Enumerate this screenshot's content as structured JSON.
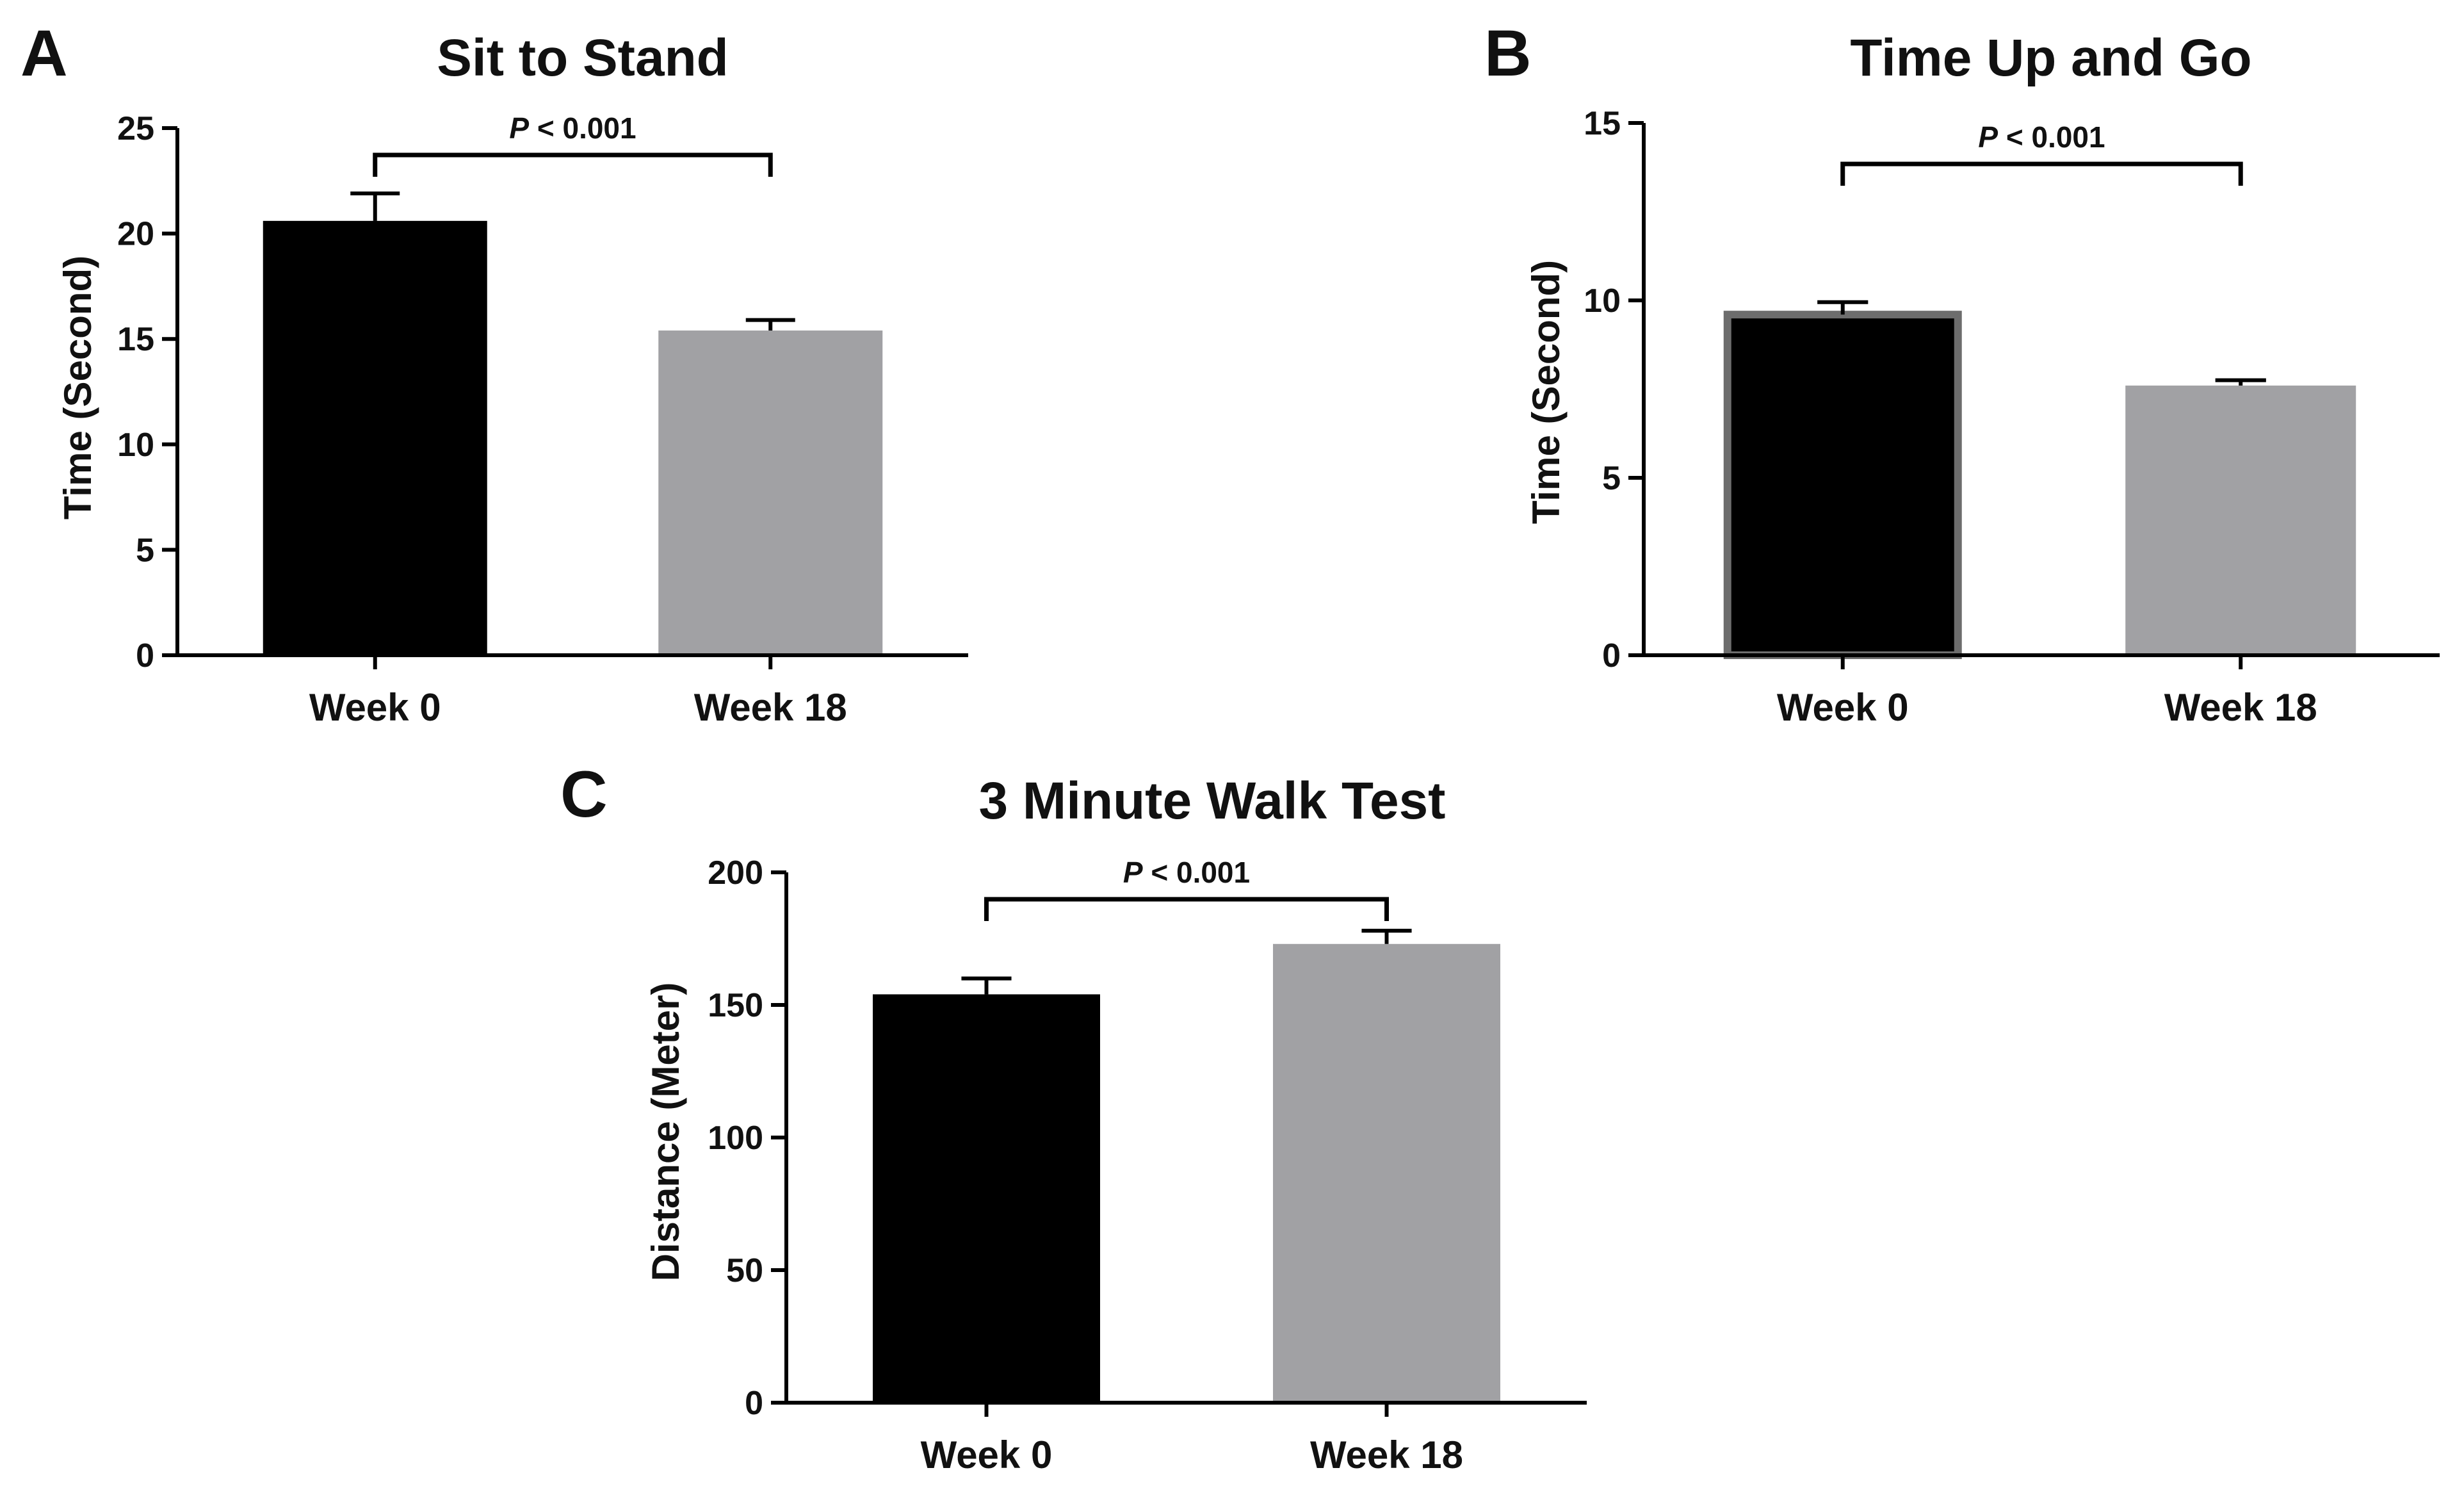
{
  "colors": {
    "week0": "#000000",
    "week18": "#a1a1a4",
    "axis": "#000000",
    "week0_border": "#6d6d6d"
  },
  "chart_data": [
    {
      "panel": "A",
      "type": "bar",
      "title": "Sit to Stand",
      "xlabel": "",
      "ylabel": "Time (Second)",
      "categories": [
        "Week 0",
        "Week 18"
      ],
      "values": [
        20.6,
        15.4
      ],
      "errors": [
        1.3,
        0.5
      ],
      "ylim": [
        0,
        25
      ],
      "yticks": [
        0,
        5,
        10,
        15,
        20,
        25
      ],
      "significance": {
        "p_symbol": "P",
        "p_text": " < 0.001",
        "between": [
          0,
          1
        ]
      }
    },
    {
      "panel": "B",
      "type": "bar",
      "title": "Time Up and Go",
      "xlabel": "",
      "ylabel": "Time (Second)",
      "categories": [
        "Week 0",
        "Week 18"
      ],
      "values": [
        9.6,
        7.6
      ],
      "errors": [
        0.35,
        0.15
      ],
      "ylim": [
        0,
        15
      ],
      "yticks": [
        0,
        5,
        10,
        15
      ],
      "significance": {
        "p_symbol": "P",
        "p_text": " < 0.001",
        "between": [
          0,
          1
        ]
      }
    },
    {
      "panel": "C",
      "type": "bar",
      "title": "3 Minute Walk Test",
      "xlabel": "",
      "ylabel": "Distance (Meter)",
      "categories": [
        "Week 0",
        "Week 18"
      ],
      "values": [
        154,
        173
      ],
      "errors": [
        6,
        5
      ],
      "ylim": [
        0,
        200
      ],
      "yticks": [
        0,
        50,
        100,
        150,
        200
      ],
      "significance": {
        "p_symbol": "P",
        "p_text": " < 0.001",
        "between": [
          0,
          1
        ]
      }
    }
  ]
}
